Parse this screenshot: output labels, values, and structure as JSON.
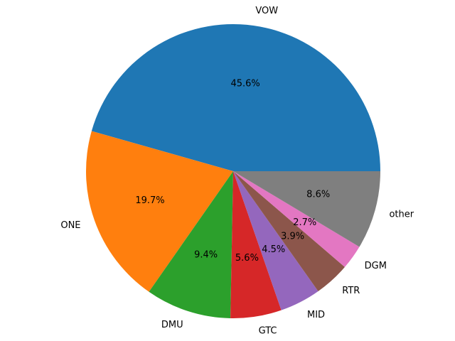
{
  "chart_data": {
    "type": "pie",
    "title": "",
    "start_angle_deg": 0,
    "direction": "counterclockwise",
    "slices": [
      {
        "label": "VOW",
        "value": 45.6,
        "display": "45.6%",
        "color": "#1f77b4"
      },
      {
        "label": "ONE",
        "value": 19.7,
        "display": "19.7%",
        "color": "#ff7f0e"
      },
      {
        "label": "DMU",
        "value": 9.4,
        "display": "9.4%",
        "color": "#2ca02c"
      },
      {
        "label": "GTC",
        "value": 5.6,
        "display": "5.6%",
        "color": "#d62728"
      },
      {
        "label": "MID",
        "value": 4.5,
        "display": "4.5%",
        "color": "#9467bd"
      },
      {
        "label": "RTR",
        "value": 3.9,
        "display": "3.9%",
        "color": "#8c564b"
      },
      {
        "label": "DGM",
        "value": 2.7,
        "display": "2.7%",
        "color": "#e377c2"
      },
      {
        "label": "other",
        "value": 8.6,
        "display": "8.6%",
        "color": "#7f7f7f"
      }
    ]
  }
}
